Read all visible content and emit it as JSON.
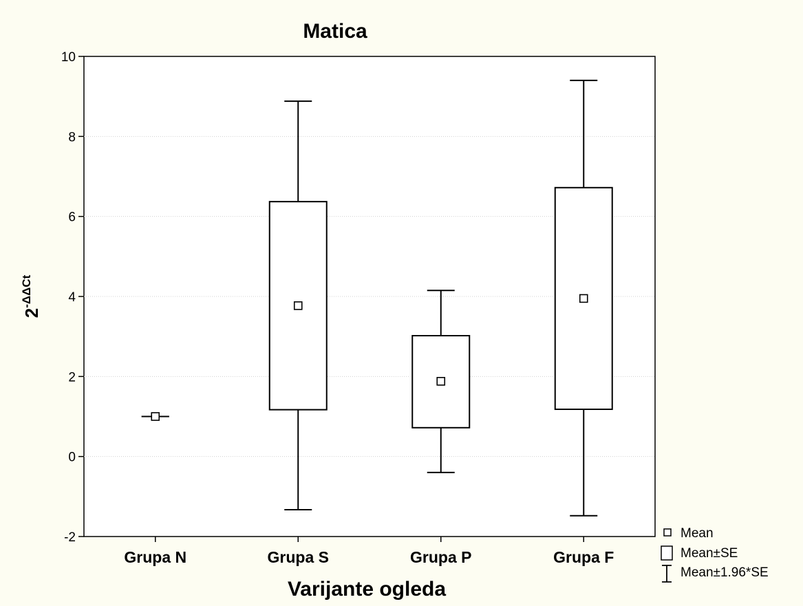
{
  "chart_data": {
    "type": "box",
    "title": "Matica",
    "xlabel": "Varijante ogleda",
    "ylabel_base": "2",
    "ylabel_sup": "-ΔΔCt",
    "ylim": [
      -2,
      10
    ],
    "yticks": [
      -2,
      0,
      2,
      4,
      6,
      8,
      10
    ],
    "ytick_labels": [
      "-2",
      "0",
      "2",
      "4",
      "6",
      "8",
      "10"
    ],
    "grid": true,
    "legend_position": "bottom-right outside",
    "categories": [
      "Grupa N",
      "Grupa S",
      "Grupa P",
      "Grupa F"
    ],
    "groups": [
      {
        "category": "Grupa N",
        "mean": 1.0,
        "se_low": 1.0,
        "se_high": 1.0,
        "ci_low": 1.0,
        "ci_high": 1.0
      },
      {
        "category": "Grupa S",
        "mean": 3.77,
        "se_low": 1.17,
        "se_high": 6.37,
        "ci_low": -1.33,
        "ci_high": 8.88
      },
      {
        "category": "Grupa P",
        "mean": 1.88,
        "se_low": 0.72,
        "se_high": 3.02,
        "ci_low": -0.4,
        "ci_high": 4.15
      },
      {
        "category": "Grupa F",
        "mean": 3.95,
        "se_low": 1.18,
        "se_high": 6.72,
        "ci_low": -1.48,
        "ci_high": 9.4
      }
    ],
    "legend": [
      {
        "symbol": "mean",
        "label": "Mean"
      },
      {
        "symbol": "box",
        "label": "Mean±SE"
      },
      {
        "symbol": "whisker",
        "label": "Mean±1.96*SE"
      }
    ],
    "colors": {
      "background": "#fdfdf2",
      "plot_area": "#ffffff",
      "ink": "#000000",
      "grid": "#d0d0d0"
    }
  }
}
